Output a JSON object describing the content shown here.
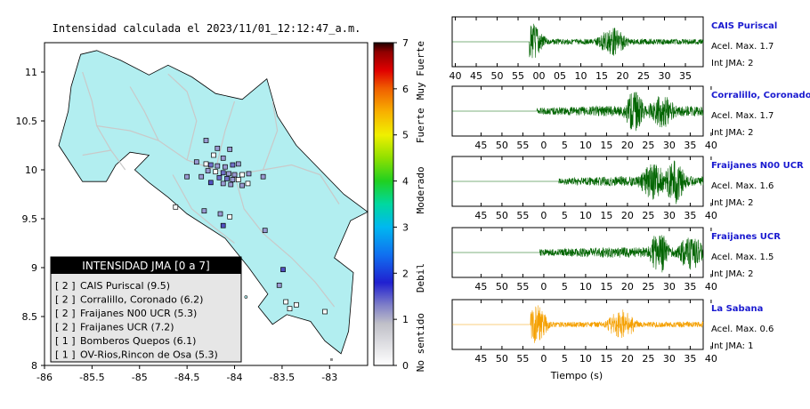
{
  "map": {
    "title": "Intensidad calculada el 2023/11/01_12:12:47_a.m.",
    "x_ticks": [
      -86,
      -85.5,
      -85,
      -84.5,
      -84,
      -83.5,
      -83
    ],
    "y_ticks": [
      8,
      8.5,
      9,
      9.5,
      10,
      10.5,
      11
    ],
    "xlim": [
      -86,
      -82.6
    ],
    "ylim": [
      8,
      11.3
    ],
    "colors": {
      "land": "#b2eef0",
      "outline": "#000000",
      "roads": "#c9c9c9",
      "background": "#ffffff"
    },
    "stations": [
      {
        "lon": -84.3,
        "lat": 10.3,
        "color": "#9a9ad2"
      },
      {
        "lon": -84.18,
        "lat": 10.22,
        "color": "#9a9ad2"
      },
      {
        "lon": -84.05,
        "lat": 10.21,
        "color": "#9a9ad2"
      },
      {
        "lon": -84.22,
        "lat": 10.15,
        "color": "#ffffff"
      },
      {
        "lon": -84.12,
        "lat": 10.12,
        "color": "#9a9ad2"
      },
      {
        "lon": -84.4,
        "lat": 10.08,
        "color": "#9a9ad2"
      },
      {
        "lon": -84.3,
        "lat": 10.06,
        "color": "#ffffff"
      },
      {
        "lon": -84.25,
        "lat": 10.05,
        "color": "#7070c8"
      },
      {
        "lon": -84.18,
        "lat": 10.04,
        "color": "#9a9ad2"
      },
      {
        "lon": -84.1,
        "lat": 10.03,
        "color": "#9a9ad2"
      },
      {
        "lon": -84.02,
        "lat": 10.05,
        "color": "#7070c8"
      },
      {
        "lon": -83.96,
        "lat": 10.06,
        "color": "#9a9ad2"
      },
      {
        "lon": -84.28,
        "lat": 9.99,
        "color": "#9a9ad2"
      },
      {
        "lon": -84.2,
        "lat": 9.98,
        "color": "#ffffff"
      },
      {
        "lon": -84.12,
        "lat": 9.97,
        "color": "#7070c8"
      },
      {
        "lon": -84.06,
        "lat": 9.96,
        "color": "#9a9ad2"
      },
      {
        "lon": -84.0,
        "lat": 9.95,
        "color": "#9a9ad2"
      },
      {
        "lon": -83.92,
        "lat": 9.95,
        "color": "#ffffff"
      },
      {
        "lon": -83.85,
        "lat": 9.96,
        "color": "#9a9ad2"
      },
      {
        "lon": -84.5,
        "lat": 9.93,
        "color": "#9a9ad2"
      },
      {
        "lon": -84.35,
        "lat": 9.93,
        "color": "#9a9ad2"
      },
      {
        "lon": -84.16,
        "lat": 9.92,
        "color": "#7070c8"
      },
      {
        "lon": -84.08,
        "lat": 9.91,
        "color": "#7070c8"
      },
      {
        "lon": -84.02,
        "lat": 9.9,
        "color": "#9a9ad2"
      },
      {
        "lon": -83.96,
        "lat": 9.9,
        "color": "#ffffff"
      },
      {
        "lon": -83.7,
        "lat": 9.93,
        "color": "#9a9ad2"
      },
      {
        "lon": -84.25,
        "lat": 9.87,
        "color": "#5050c0"
      },
      {
        "lon": -84.12,
        "lat": 9.86,
        "color": "#9a9ad2"
      },
      {
        "lon": -84.04,
        "lat": 9.85,
        "color": "#9a9ad2"
      },
      {
        "lon": -83.92,
        "lat": 9.84,
        "color": "#9a9ad2"
      },
      {
        "lon": -83.86,
        "lat": 9.86,
        "color": "#ffffff"
      },
      {
        "lon": -84.62,
        "lat": 9.62,
        "color": "#ffffff"
      },
      {
        "lon": -84.32,
        "lat": 9.58,
        "color": "#9a9ad2"
      },
      {
        "lon": -84.15,
        "lat": 9.55,
        "color": "#9a9ad2"
      },
      {
        "lon": -84.05,
        "lat": 9.52,
        "color": "#ffffff"
      },
      {
        "lon": -84.12,
        "lat": 9.43,
        "color": "#5050c0"
      },
      {
        "lon": -83.68,
        "lat": 9.38,
        "color": "#9a9ad2"
      },
      {
        "lon": -83.49,
        "lat": 8.98,
        "color": "#5050c0"
      },
      {
        "lon": -83.53,
        "lat": 8.82,
        "color": "#9a9ad2"
      },
      {
        "lon": -83.46,
        "lat": 8.65,
        "color": "#ffffff"
      },
      {
        "lon": -83.35,
        "lat": 8.62,
        "color": "#ffffff"
      },
      {
        "lon": -83.42,
        "lat": 8.58,
        "color": "#ffffff"
      },
      {
        "lon": -83.05,
        "lat": 8.55,
        "color": "#ffffff"
      }
    ]
  },
  "colorbar": {
    "ticks": [
      0,
      1,
      2,
      3,
      4,
      5,
      6,
      7
    ],
    "category_labels": [
      {
        "text": "No sentido",
        "value": 0.5
      },
      {
        "text": "Debil",
        "value": 1.9
      },
      {
        "text": "Moderado",
        "value": 3.8
      },
      {
        "text": "Fuerte",
        "value": 5.2
      },
      {
        "text": "Muy Fuerte",
        "value": 6.4
      }
    ],
    "stops": [
      {
        "v": 0.0,
        "c": "#ffffff"
      },
      {
        "v": 0.9,
        "c": "#c0c0c8"
      },
      {
        "v": 1.3,
        "c": "#8080c8"
      },
      {
        "v": 1.8,
        "c": "#2020d0"
      },
      {
        "v": 2.4,
        "c": "#1070f0"
      },
      {
        "v": 3.0,
        "c": "#00b8f0"
      },
      {
        "v": 3.5,
        "c": "#00d8a0"
      },
      {
        "v": 4.0,
        "c": "#20d020"
      },
      {
        "v": 4.5,
        "c": "#90e000"
      },
      {
        "v": 5.0,
        "c": "#f0f000"
      },
      {
        "v": 5.5,
        "c": "#f8b000"
      },
      {
        "v": 6.0,
        "c": "#f06000"
      },
      {
        "v": 6.4,
        "c": "#e00000"
      },
      {
        "v": 6.8,
        "c": "#900000"
      },
      {
        "v": 7.0,
        "c": "#200000"
      }
    ]
  },
  "legend": {
    "header": "INTENSIDAD JMA [0 a 7]",
    "rows": [
      {
        "grade": "[ 2 ]",
        "name": "CAIS Puriscal (9.5)"
      },
      {
        "grade": "[ 2 ]",
        "name": "Corralillo, Coronado (6.2)"
      },
      {
        "grade": "[ 2 ]",
        "name": "Fraijanes N00 UCR (5.3)"
      },
      {
        "grade": "[ 2 ]",
        "name": "Fraijanes UCR (7.2)"
      },
      {
        "grade": "[ 1 ]",
        "name": "Bomberos Quepos (6.1)"
      },
      {
        "grade": "[ 1 ]",
        "name": "OV-Rios,Rincon de Osa (5.3)"
      }
    ]
  },
  "chart_data": {
    "type": "line",
    "xlabel": "Tiempo (s)",
    "x_tick_labels": {
      "first_panel": [
        "40",
        "45",
        "50",
        "55",
        "00",
        "05",
        "10",
        "15",
        "20",
        "25",
        "30",
        "35"
      ],
      "other_panels": [
        "45",
        "50",
        "55",
        "0",
        "5",
        "10",
        "15",
        "20",
        "25",
        "30",
        "35",
        "40"
      ]
    },
    "traces": [
      {
        "name": "CAIS Puriscal",
        "accel_label": "Acel. Max. 1.7",
        "jma_label": "Int JMA: 2",
        "color": "#006400",
        "onset": 12.3,
        "peak": 13.0,
        "peak2": 25.5,
        "env": 0.8,
        "late": false
      },
      {
        "name": "Corralillo, Coronado",
        "accel_label": "Acel. Max. 1.7",
        "jma_label": "Int JMA: 2",
        "color": "#006400",
        "onset": 13.5,
        "peak": 29.0,
        "peak2": 33.5,
        "env": 0.9,
        "late": true
      },
      {
        "name": "Fraijanes N00 UCR",
        "accel_label": "Acel. Max. 1.6",
        "jma_label": "Int JMA: 2",
        "color": "#006400",
        "onset": 17.0,
        "peak": 35.5,
        "peak2": 32.0,
        "env": 1.0,
        "late": true
      },
      {
        "name": "Fraijanes UCR",
        "accel_label": "Acel. Max. 1.5",
        "jma_label": "Int JMA: 2",
        "color": "#006400",
        "onset": 14.0,
        "peak": 33.0,
        "peak2": 38.0,
        "env": 0.95,
        "late": true
      },
      {
        "name": "La Sabana",
        "accel_label": "Acel. Max. 0.6",
        "jma_label": "Int JMA: 1",
        "color": "#f5a000",
        "onset": 12.5,
        "peak": 13.5,
        "peak2": 27.0,
        "env": 0.85,
        "late": false
      }
    ]
  }
}
